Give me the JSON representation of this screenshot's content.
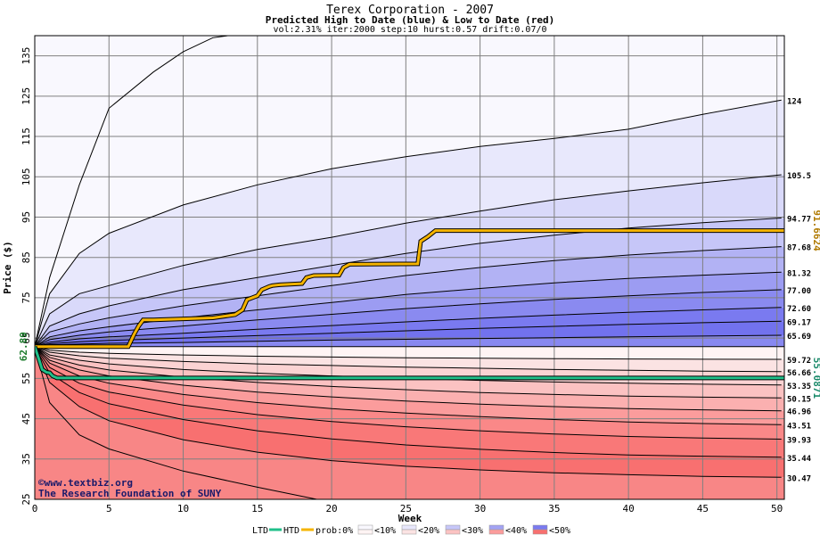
{
  "chart_data": {
    "type": "area",
    "title": "Terex Corporation - 2007",
    "subtitle": "Predicted High to Date (blue) &  Low to Date (red)",
    "params": "vol:2.31% iter:2000 step:10 hurst:0.57 drift:0.07/0",
    "xlabel": "Week",
    "ylabel": "Price ($)",
    "xlim": [
      0,
      50.5
    ],
    "ylim": [
      25,
      140
    ],
    "x_ticks": [
      0,
      5,
      10,
      15,
      20,
      25,
      30,
      35,
      40,
      45,
      50
    ],
    "y_ticks": [
      25,
      35,
      45,
      55,
      65,
      75,
      85,
      95,
      105,
      115,
      125,
      135
    ],
    "start_price": 62.89,
    "start_price_label": "62.89",
    "grid": true,
    "upper_quantiles": [
      {
        "end": 124,
        "label": "124",
        "x": [
          0,
          1,
          3,
          5,
          10,
          15,
          20,
          25,
          30,
          35,
          40,
          45,
          50.3
        ],
        "y": [
          62.89,
          76,
          86,
          91,
          98,
          103,
          107,
          110,
          112.5,
          114.5,
          116.8,
          120.5,
          124
        ]
      },
      {
        "end": 105.5,
        "label": "105.5",
        "x": [
          0,
          1,
          3,
          5,
          10,
          15,
          20,
          25,
          30,
          35,
          40,
          45,
          50.3
        ],
        "y": [
          62.89,
          71,
          76,
          78,
          83,
          87,
          90,
          93.5,
          96.5,
          99.3,
          101.5,
          103.5,
          105.5
        ]
      },
      {
        "end": 94.77,
        "label": "94.77",
        "x": [
          0,
          1,
          3,
          5,
          10,
          15,
          20,
          25,
          30,
          35,
          40,
          45,
          50.3
        ],
        "y": [
          62.89,
          68,
          71,
          73,
          77,
          80,
          83,
          86,
          88.5,
          90.5,
          92.3,
          93.6,
          94.77
        ]
      },
      {
        "end": 87.68,
        "label": "87.68",
        "x": [
          0,
          1,
          3,
          5,
          10,
          15,
          20,
          25,
          30,
          35,
          40,
          45,
          50.3
        ],
        "y": [
          62.89,
          66.5,
          68.5,
          70,
          73,
          75.5,
          78,
          80.5,
          82.5,
          84.2,
          85.6,
          86.7,
          87.68
        ]
      },
      {
        "end": 81.32,
        "label": "81.32",
        "x": [
          0,
          1,
          3,
          5,
          10,
          15,
          20,
          25,
          30,
          35,
          40,
          45,
          50.3
        ],
        "y": [
          62.89,
          65.3,
          66.8,
          67.8,
          70,
          72,
          73.8,
          75.8,
          77.3,
          78.7,
          79.8,
          80.6,
          81.32
        ]
      },
      {
        "end": 77.0,
        "label": "77.00",
        "x": [
          0,
          1,
          3,
          5,
          10,
          15,
          20,
          25,
          30,
          35,
          40,
          45,
          50.3
        ],
        "y": [
          62.89,
          64.6,
          65.7,
          66.5,
          68,
          69.5,
          70.9,
          72.3,
          73.5,
          74.6,
          75.5,
          76.3,
          77.0
        ]
      },
      {
        "end": 72.6,
        "label": "72.60",
        "x": [
          0,
          1,
          3,
          5,
          10,
          15,
          20,
          25,
          30,
          35,
          40,
          45,
          50.3
        ],
        "y": [
          62.89,
          64,
          64.8,
          65.3,
          66.2,
          67.2,
          68.1,
          69,
          69.9,
          70.7,
          71.4,
          72,
          72.6
        ]
      },
      {
        "end": 69.17,
        "label": "69.17",
        "x": [
          0,
          1,
          3,
          5,
          10,
          15,
          20,
          25,
          30,
          35,
          40,
          45,
          50.3
        ],
        "y": [
          62.89,
          63.6,
          64.1,
          64.4,
          65,
          65.6,
          66.2,
          66.8,
          67.4,
          67.9,
          68.4,
          68.8,
          69.17
        ]
      },
      {
        "end": 65.69,
        "label": "65.69",
        "x": [
          0,
          1,
          3,
          5,
          10,
          15,
          20,
          25,
          30,
          35,
          40,
          45,
          50.3
        ],
        "y": [
          62.89,
          63.3,
          63.5,
          63.7,
          63.9,
          64.2,
          64.5,
          64.7,
          64.9,
          65.1,
          65.3,
          65.5,
          65.69
        ]
      }
    ],
    "lower_quantiles": [
      {
        "end": 59.72,
        "label": "59.72",
        "x": [
          0,
          1,
          3,
          5,
          10,
          15,
          20,
          25,
          30,
          35,
          40,
          45,
          50.3
        ],
        "y": [
          62.89,
          62,
          61.5,
          61.2,
          60.8,
          60.5,
          60.3,
          60.1,
          60,
          59.9,
          59.8,
          59.75,
          59.72
        ]
      },
      {
        "end": 56.66,
        "label": "56.66",
        "x": [
          0,
          1,
          3,
          5,
          10,
          15,
          20,
          25,
          30,
          35,
          40,
          45,
          50.3
        ],
        "y": [
          62.89,
          61.5,
          60.6,
          60,
          59.2,
          58.6,
          58.2,
          57.8,
          57.5,
          57.2,
          57,
          56.8,
          56.66
        ]
      },
      {
        "end": 53.35,
        "label": "53.35",
        "x": [
          0,
          1,
          3,
          5,
          10,
          15,
          20,
          25,
          30,
          35,
          40,
          45,
          50.3
        ],
        "y": [
          62.89,
          60.8,
          59.5,
          58.6,
          57.2,
          56.3,
          55.6,
          55,
          54.5,
          54.1,
          53.8,
          53.55,
          53.35
        ]
      },
      {
        "end": 50.15,
        "label": "50.15",
        "x": [
          0,
          1,
          3,
          5,
          10,
          15,
          20,
          25,
          30,
          35,
          40,
          45,
          50.3
        ],
        "y": [
          62.89,
          60.2,
          58.3,
          57.1,
          55.3,
          54,
          53,
          52.2,
          51.5,
          51,
          50.6,
          50.35,
          50.15
        ]
      },
      {
        "end": 46.96,
        "label": "46.96",
        "x": [
          0,
          1,
          3,
          5,
          10,
          15,
          20,
          25,
          30,
          35,
          40,
          45,
          50.3
        ],
        "y": [
          62.89,
          59.5,
          57.1,
          55.6,
          53.3,
          51.6,
          50.4,
          49.4,
          48.6,
          48,
          47.5,
          47.2,
          46.96
        ]
      },
      {
        "end": 43.51,
        "label": "43.51",
        "x": [
          0,
          1,
          3,
          5,
          10,
          15,
          20,
          25,
          30,
          35,
          40,
          45,
          50.3
        ],
        "y": [
          62.89,
          58.8,
          55.6,
          53.8,
          51,
          49,
          47.5,
          46.4,
          45.5,
          44.8,
          44.2,
          43.8,
          43.51
        ]
      },
      {
        "end": 39.93,
        "label": "39.93",
        "x": [
          0,
          1,
          3,
          5,
          10,
          15,
          20,
          25,
          30,
          35,
          40,
          45,
          50.3
        ],
        "y": [
          62.89,
          57.7,
          53.8,
          51.6,
          48.4,
          46,
          44.3,
          43,
          42,
          41.2,
          40.6,
          40.2,
          39.93
        ]
      },
      {
        "end": 35.44,
        "label": "35.44",
        "x": [
          0,
          1,
          3,
          5,
          10,
          15,
          20,
          25,
          30,
          35,
          40,
          45,
          50.3
        ],
        "y": [
          62.89,
          56.3,
          51.5,
          48.7,
          44.8,
          42,
          40,
          38.5,
          37.4,
          36.6,
          36,
          35.7,
          35.44
        ]
      },
      {
        "end": 30.47,
        "label": "30.47",
        "x": [
          0,
          1,
          3,
          5,
          10,
          15,
          20,
          25,
          30,
          35,
          40,
          45,
          50.3
        ],
        "y": [
          62.89,
          54,
          48,
          44.5,
          39.8,
          36.7,
          34.6,
          33.2,
          32.3,
          31.6,
          31.1,
          30.7,
          30.47
        ]
      }
    ],
    "outer_upper": {
      "x": [
        0,
        1,
        3,
        5,
        8,
        10,
        12,
        13
      ],
      "y": [
        62.89,
        80,
        103,
        122,
        131,
        136,
        139.5,
        140
      ]
    },
    "outer_lower": {
      "x": [
        0,
        1,
        3,
        5,
        10,
        15,
        19
      ],
      "y": [
        62.89,
        49,
        41,
        37.5,
        32,
        28,
        25
      ]
    },
    "band_colors_upper": [
      "#f9f8fe",
      "#e8e8fc",
      "#d9d9fa",
      "#c6c6f8",
      "#b2b2f4",
      "#9c9cf2",
      "#8a8af0",
      "#7a7af0",
      "#7272ee",
      "#8888f0"
    ],
    "band_colors_lower": [
      "#fff4f4",
      "#fbe3e3",
      "#fbd3d3",
      "#fbc2c2",
      "#fbb0b0",
      "#fb9c9c",
      "#fa8888",
      "#f97878",
      "#f87070",
      "#f88686"
    ],
    "htd_series": {
      "name": "HTD",
      "color": "#f5b400",
      "end_label": "91.6624",
      "x": [
        0,
        6.3,
        6.7,
        7,
        7.3,
        8,
        12,
        13.5,
        14,
        14.3,
        15,
        15.3,
        15.8,
        16,
        16.5,
        18,
        18.3,
        18.8,
        20.5,
        20.8,
        21.2,
        25.8,
        26,
        26.5,
        27,
        50.5
      ],
      "y": [
        62.89,
        62.89,
        66,
        68,
        69.5,
        69.5,
        70,
        70.8,
        72,
        74.5,
        75.5,
        77,
        77.8,
        78,
        78.2,
        78.5,
        80,
        80.5,
        80.6,
        82.5,
        83.3,
        83.4,
        89,
        90.2,
        91.66,
        91.66
      ]
    },
    "ltd_series": {
      "name": "LTD",
      "color": "#20c08a",
      "end_label": "55.0871",
      "x": [
        0,
        0.3,
        0.5,
        0.8,
        1,
        1.2,
        1.5,
        50.5
      ],
      "y": [
        62.89,
        59.5,
        57.2,
        56.5,
        56.4,
        55.6,
        55.09,
        55.09
      ]
    },
    "watermark": {
      "line1": "©www.textbiz.org",
      "line2": "The Research Foundation of SUNY"
    },
    "legend": {
      "ltd": "LTD",
      "htd": "HTD",
      "prob": "prob:0%",
      "buckets": [
        "<10%",
        "<20%",
        "<30%",
        "<40%",
        "<50%"
      ],
      "colors_upper": [
        "#f9f8fe",
        "#e8e8fc",
        "#c6c6f8",
        "#a3a3f3",
        "#7a7af0"
      ],
      "colors_lower": [
        "#fff4f4",
        "#fbe3e3",
        "#fbc2c2",
        "#fb9c9c",
        "#f87070"
      ]
    }
  }
}
